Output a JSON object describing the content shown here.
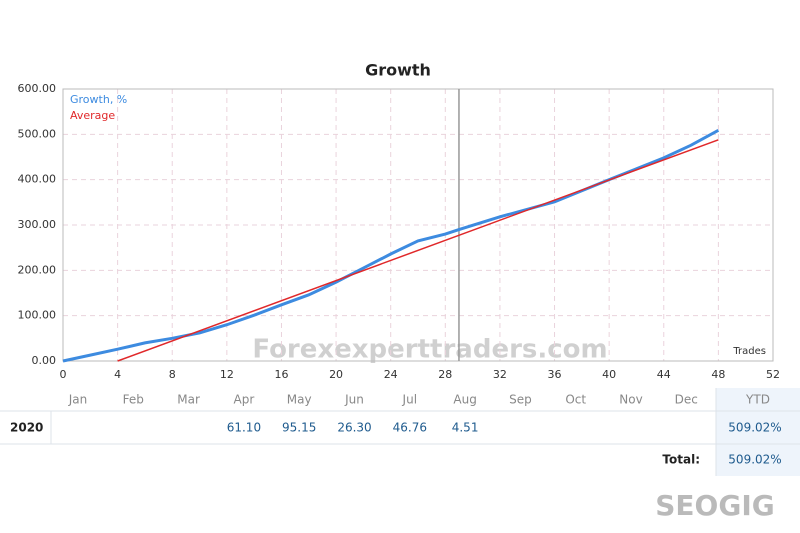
{
  "chart_data": {
    "type": "line",
    "title": "Growth",
    "x_label": "Trades",
    "xlim": [
      0,
      52
    ],
    "xticks": [
      0,
      4,
      8,
      12,
      16,
      20,
      24,
      28,
      32,
      36,
      40,
      44,
      48,
      52
    ],
    "ylim": [
      0,
      600
    ],
    "yticks": [
      {
        "value": 0,
        "label": "0.00"
      },
      {
        "value": 100,
        "label": "100.00"
      },
      {
        "value": 200,
        "label": "200.00"
      },
      {
        "value": 300,
        "label": "300.00"
      },
      {
        "value": 400,
        "label": "400.00"
      },
      {
        "value": 500,
        "label": "500.00"
      },
      {
        "value": 600,
        "label": "600.00"
      }
    ],
    "grid": true,
    "legend": "top-left",
    "cursor_x": 29,
    "series": [
      {
        "name": "Growth, %",
        "color": "#3d8be0",
        "x": [
          0,
          2,
          4,
          6,
          8,
          10,
          12,
          14,
          16,
          18,
          20,
          22,
          24,
          26,
          28,
          29,
          32,
          36,
          40,
          44,
          46,
          48
        ],
        "values": [
          0,
          13,
          26,
          40,
          50,
          62,
          80,
          101,
          124,
          146,
          174,
          205,
          236,
          265,
          280,
          290,
          318,
          351,
          400,
          448,
          476,
          509
        ]
      },
      {
        "name": "Average",
        "color": "#e0282a",
        "x": [
          4,
          48
        ],
        "values": [
          0,
          488
        ]
      }
    ]
  },
  "table": {
    "header": [
      "Jan",
      "Feb",
      "Mar",
      "Apr",
      "May",
      "Jun",
      "Jul",
      "Aug",
      "Sep",
      "Oct",
      "Nov",
      "Dec",
      "YTD"
    ],
    "row": {
      "label": "2020",
      "cells": [
        null,
        null,
        null,
        "61.10",
        "95.15",
        "26.30",
        "46.76",
        "4.51",
        null,
        null,
        null,
        null
      ],
      "ytd": "509.02%"
    },
    "total": {
      "label": "Total:",
      "value": "509.02%"
    }
  },
  "watermarks": [
    "Forexexperttraders.com",
    "SEOGIG"
  ]
}
